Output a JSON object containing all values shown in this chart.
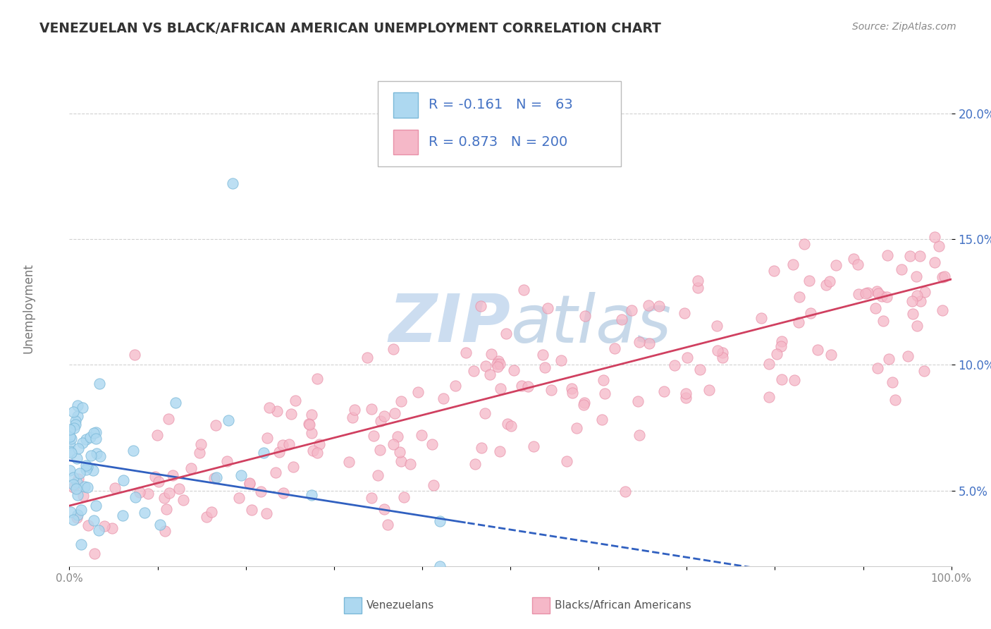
{
  "title": "VENEZUELAN VS BLACK/AFRICAN AMERICAN UNEMPLOYMENT CORRELATION CHART",
  "source": "Source: ZipAtlas.com",
  "ylabel_label": "Unemployment",
  "yticks": [
    0.05,
    0.1,
    0.15,
    0.2
  ],
  "ytick_labels": [
    "5.0%",
    "10.0%",
    "15.0%",
    "20.0%"
  ],
  "xlim": [
    0.0,
    1.0
  ],
  "ylim": [
    0.02,
    0.225
  ],
  "venezuelan_fill": "#add8f0",
  "venezuelan_edge": "#7ab8d8",
  "black_fill": "#f5b8c8",
  "black_edge": "#e890a8",
  "trend_blue_solid": "#3060c0",
  "trend_blue_dash": "#3060c0",
  "trend_pink": "#d04060",
  "legend_label1": "Venezuelans",
  "legend_label2": "Blacks/African Americans",
  "legend_text_color": "#4472c4",
  "watermark_color": "#ccddf0",
  "background_color": "#ffffff",
  "grid_color": "#cccccc",
  "title_color": "#333333",
  "source_color": "#888888",
  "tick_color": "#888888",
  "ytick_color": "#4472c4",
  "trend_ven_intercept": 0.062,
  "trend_ven_slope": -0.055,
  "trend_blk_intercept": 0.044,
  "trend_blk_slope": 0.09
}
